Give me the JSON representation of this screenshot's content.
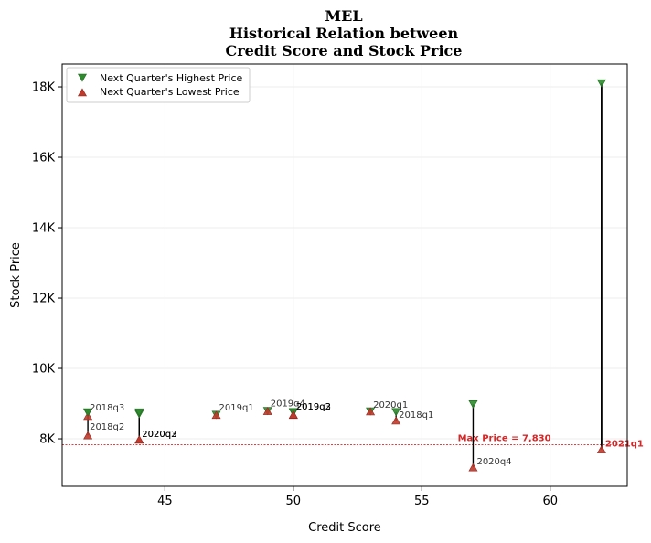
{
  "chart_data": {
    "type": "scatter",
    "title_lines": [
      "MEL",
      "Historical Relation between",
      "Credit Score and Stock Price"
    ],
    "xlabel": "Credit Score",
    "ylabel": "Stock Price",
    "xlim": [
      41,
      63
    ],
    "ylim": [
      6650,
      18650
    ],
    "x_ticks": [
      45,
      50,
      55,
      60
    ],
    "y_ticks": [
      {
        "value": 8000,
        "label": "8K"
      },
      {
        "value": 10000,
        "label": "10K"
      },
      {
        "value": 12000,
        "label": "12K"
      },
      {
        "value": 14000,
        "label": "14K"
      },
      {
        "value": 16000,
        "label": "16K"
      },
      {
        "value": 18000,
        "label": "18K"
      }
    ],
    "grid": true,
    "legend_position": "top-left",
    "series": [
      {
        "name": "Next Quarter's Highest Price",
        "marker": "triangle-down",
        "color": "#2e8b2e"
      },
      {
        "name": "Next Quarter's Lowest Price",
        "marker": "triangle-up",
        "color": "#c0392b"
      }
    ],
    "points": [
      {
        "quarter": "2018q3",
        "x": 42,
        "high": 8750,
        "low": 8650
      },
      {
        "quarter": "2018q2",
        "x": 42,
        "high": 8750,
        "low": 8100
      },
      {
        "quarter": "2020q3",
        "x": 44,
        "high": 8700,
        "low": 7980
      },
      {
        "quarter": "2020q2",
        "x": 44,
        "high": 8750,
        "low": 7980
      },
      {
        "quarter": "2019q1",
        "x": 47,
        "high": 8680,
        "low": 8680
      },
      {
        "quarter": "2019q4",
        "x": 49,
        "high": 8790,
        "low": 8790
      },
      {
        "quarter": "2019q2",
        "x": 50,
        "high": 8750,
        "low": 8680
      },
      {
        "quarter": "2019q3",
        "x": 50,
        "high": 8760,
        "low": 8690
      },
      {
        "quarter": "2020q1",
        "x": 53,
        "high": 8780,
        "low": 8780
      },
      {
        "quarter": "2018q1",
        "x": 54,
        "high": 8760,
        "low": 8520
      },
      {
        "quarter": "2020q4",
        "x": 57,
        "high": 8980,
        "low": 7190
      },
      {
        "quarter": "2021q1",
        "x": 62,
        "high": 18100,
        "low": 7700
      }
    ],
    "reference_line": {
      "value": 7830,
      "label": "Max Price = 7,830",
      "color": "#d62728"
    },
    "highlight_quarter": "2021q1"
  }
}
